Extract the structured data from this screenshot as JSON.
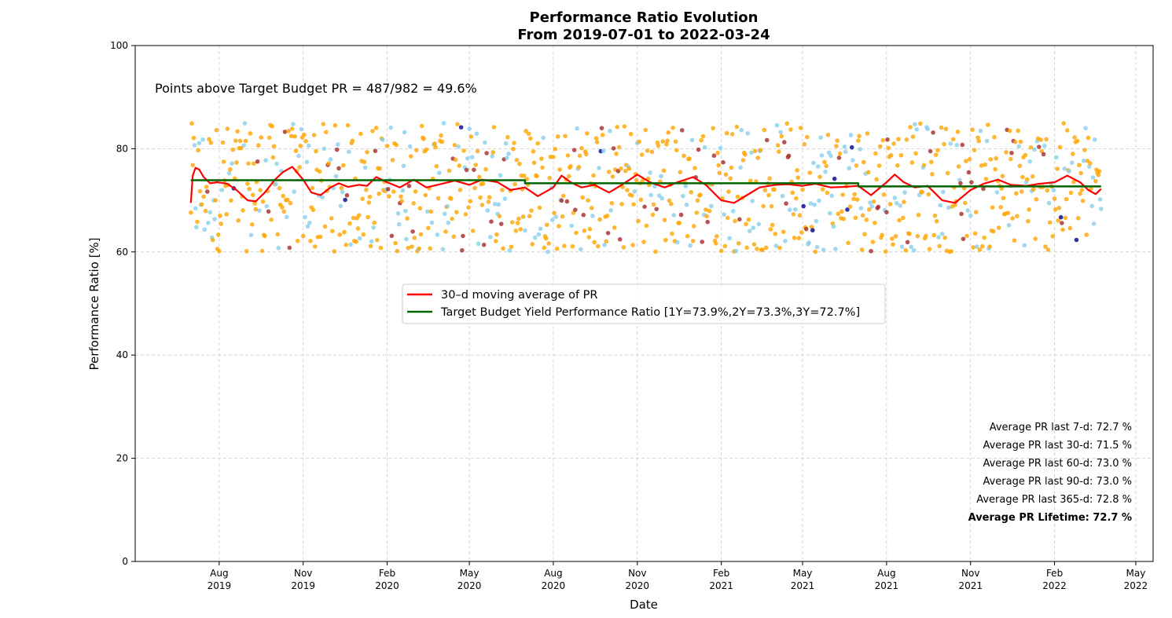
{
  "chart_data": {
    "type": "scatter",
    "title": "Performance Ratio Evolution",
    "subtitle": "From 2019-07-01 to 2022-03-24",
    "xlabel": "Date",
    "ylabel": "Performance Ratio [%]",
    "xlim": [
      "2019-05-01",
      "2022-05-20"
    ],
    "ylim": [
      0,
      100
    ],
    "yticks": [
      0,
      20,
      40,
      60,
      80,
      100
    ],
    "xticks": [
      {
        "date": "2019-08-01",
        "line1": "Aug",
        "line2": "2019"
      },
      {
        "date": "2019-11-01",
        "line1": "Nov",
        "line2": "2019"
      },
      {
        "date": "2020-02-01",
        "line1": "Feb",
        "line2": "2020"
      },
      {
        "date": "2020-05-01",
        "line1": "May",
        "line2": "2020"
      },
      {
        "date": "2020-08-01",
        "line1": "Aug",
        "line2": "2020"
      },
      {
        "date": "2020-11-01",
        "line1": "Nov",
        "line2": "2020"
      },
      {
        "date": "2021-02-01",
        "line1": "Feb",
        "line2": "2021"
      },
      {
        "date": "2021-05-01",
        "line1": "May",
        "line2": "2021"
      },
      {
        "date": "2021-08-01",
        "line1": "Aug",
        "line2": "2021"
      },
      {
        "date": "2021-11-01",
        "line1": "Nov",
        "line2": "2021"
      },
      {
        "date": "2022-02-01",
        "line1": "Feb",
        "line2": "2022"
      },
      {
        "date": "2022-05-01",
        "line1": "May",
        "line2": "2022"
      }
    ],
    "grid": true,
    "annotation": "Points above Target Budget PR = 487/982 = 49.6%",
    "legend_position": "center",
    "series": [
      {
        "name": "30–d moving average of PR",
        "kind": "line",
        "color": "#ff0000",
        "points": [
          [
            "2019-07-01",
            69.5
          ],
          [
            "2019-07-03",
            74.8
          ],
          [
            "2019-07-06",
            76.3
          ],
          [
            "2019-07-10",
            76.0
          ],
          [
            "2019-07-15",
            74.5
          ],
          [
            "2019-07-22",
            73.3
          ],
          [
            "2019-07-30",
            73.5
          ],
          [
            "2019-08-10",
            73.2
          ],
          [
            "2019-08-20",
            72.0
          ],
          [
            "2019-09-01",
            70.0
          ],
          [
            "2019-09-10",
            69.8
          ],
          [
            "2019-09-20",
            71.5
          ],
          [
            "2019-10-01",
            74.0
          ],
          [
            "2019-10-10",
            75.5
          ],
          [
            "2019-10-20",
            76.5
          ],
          [
            "2019-11-01",
            74.0
          ],
          [
            "2019-11-10",
            71.5
          ],
          [
            "2019-11-20",
            71.0
          ],
          [
            "2019-12-01",
            72.5
          ],
          [
            "2019-12-10",
            73.3
          ],
          [
            "2019-12-20",
            72.6
          ],
          [
            "2020-01-01",
            73.0
          ],
          [
            "2020-01-10",
            72.8
          ],
          [
            "2020-01-20",
            74.5
          ],
          [
            "2020-02-01",
            73.5
          ],
          [
            "2020-02-15",
            72.5
          ],
          [
            "2020-03-01",
            74.0
          ],
          [
            "2020-03-15",
            72.5
          ],
          [
            "2020-04-01",
            73.2
          ],
          [
            "2020-04-15",
            73.8
          ],
          [
            "2020-05-01",
            73.0
          ],
          [
            "2020-05-15",
            74.0
          ],
          [
            "2020-06-01",
            73.5
          ],
          [
            "2020-06-15",
            72.0
          ],
          [
            "2020-07-01",
            72.5
          ],
          [
            "2020-07-15",
            70.8
          ],
          [
            "2020-08-01",
            72.5
          ],
          [
            "2020-08-10",
            74.8
          ],
          [
            "2020-08-20",
            73.5
          ],
          [
            "2020-09-01",
            72.5
          ],
          [
            "2020-09-15",
            73.0
          ],
          [
            "2020-10-01",
            71.5
          ],
          [
            "2020-10-15",
            73.0
          ],
          [
            "2020-11-01",
            75.0
          ],
          [
            "2020-11-15",
            73.5
          ],
          [
            "2020-12-01",
            72.5
          ],
          [
            "2020-12-15",
            73.5
          ],
          [
            "2021-01-01",
            74.5
          ],
          [
            "2021-01-15",
            73.0
          ],
          [
            "2021-02-01",
            70.0
          ],
          [
            "2021-02-15",
            69.5
          ],
          [
            "2021-03-01",
            71.0
          ],
          [
            "2021-03-15",
            72.5
          ],
          [
            "2021-04-01",
            73.0
          ],
          [
            "2021-04-15",
            73.1
          ],
          [
            "2021-05-01",
            72.8
          ],
          [
            "2021-05-15",
            73.2
          ],
          [
            "2021-06-01",
            72.5
          ],
          [
            "2021-06-15",
            72.6
          ],
          [
            "2021-07-01",
            72.8
          ],
          [
            "2021-07-15",
            71.0
          ],
          [
            "2021-08-01",
            73.5
          ],
          [
            "2021-08-10",
            75.0
          ],
          [
            "2021-08-20",
            73.5
          ],
          [
            "2021-09-01",
            72.5
          ],
          [
            "2021-09-15",
            72.8
          ],
          [
            "2021-10-01",
            70.0
          ],
          [
            "2021-10-15",
            69.5
          ],
          [
            "2021-11-01",
            72.0
          ],
          [
            "2021-11-15",
            73.2
          ],
          [
            "2021-12-01",
            74.0
          ],
          [
            "2021-12-15",
            73.0
          ],
          [
            "2022-01-01",
            72.8
          ],
          [
            "2022-01-15",
            73.2
          ],
          [
            "2022-02-01",
            73.5
          ],
          [
            "2022-02-15",
            74.8
          ],
          [
            "2022-03-01",
            73.5
          ],
          [
            "2022-03-10",
            72.0
          ],
          [
            "2022-03-18",
            71.2
          ],
          [
            "2022-03-24",
            72.2
          ]
        ]
      },
      {
        "name": "Target Budget Yield Performance Ratio [1Y=73.9%,2Y=73.3%,3Y=72.7%]",
        "kind": "step",
        "color": "#006400",
        "points": [
          [
            "2019-07-01",
            73.9
          ],
          [
            "2020-07-01",
            73.9
          ],
          [
            "2020-07-01",
            73.3
          ],
          [
            "2021-07-01",
            73.3
          ],
          [
            "2021-07-01",
            72.7
          ],
          [
            "2022-03-24",
            72.7
          ]
        ]
      }
    ],
    "scatter_colors": {
      "orange": "#ffa500",
      "light_blue": "#87ceeb",
      "dark_red": "#a52a2a",
      "dark_blue": "#00008b"
    },
    "scatter_note": "982 daily PR points between 60% and 85%, colored by category",
    "stats": [
      {
        "label": "Average PR last 7-d: 72.7 %",
        "bold": false
      },
      {
        "label": "Average PR last 30-d: 71.5 %",
        "bold": false
      },
      {
        "label": "Average PR last 60-d: 73.0 %",
        "bold": false
      },
      {
        "label": "Average PR last 90-d: 73.0 %",
        "bold": false
      },
      {
        "label": "Average PR last 365-d: 72.8 %",
        "bold": false
      },
      {
        "label": "Average PR Lifetime: 72.7 %",
        "bold": true
      }
    ]
  }
}
